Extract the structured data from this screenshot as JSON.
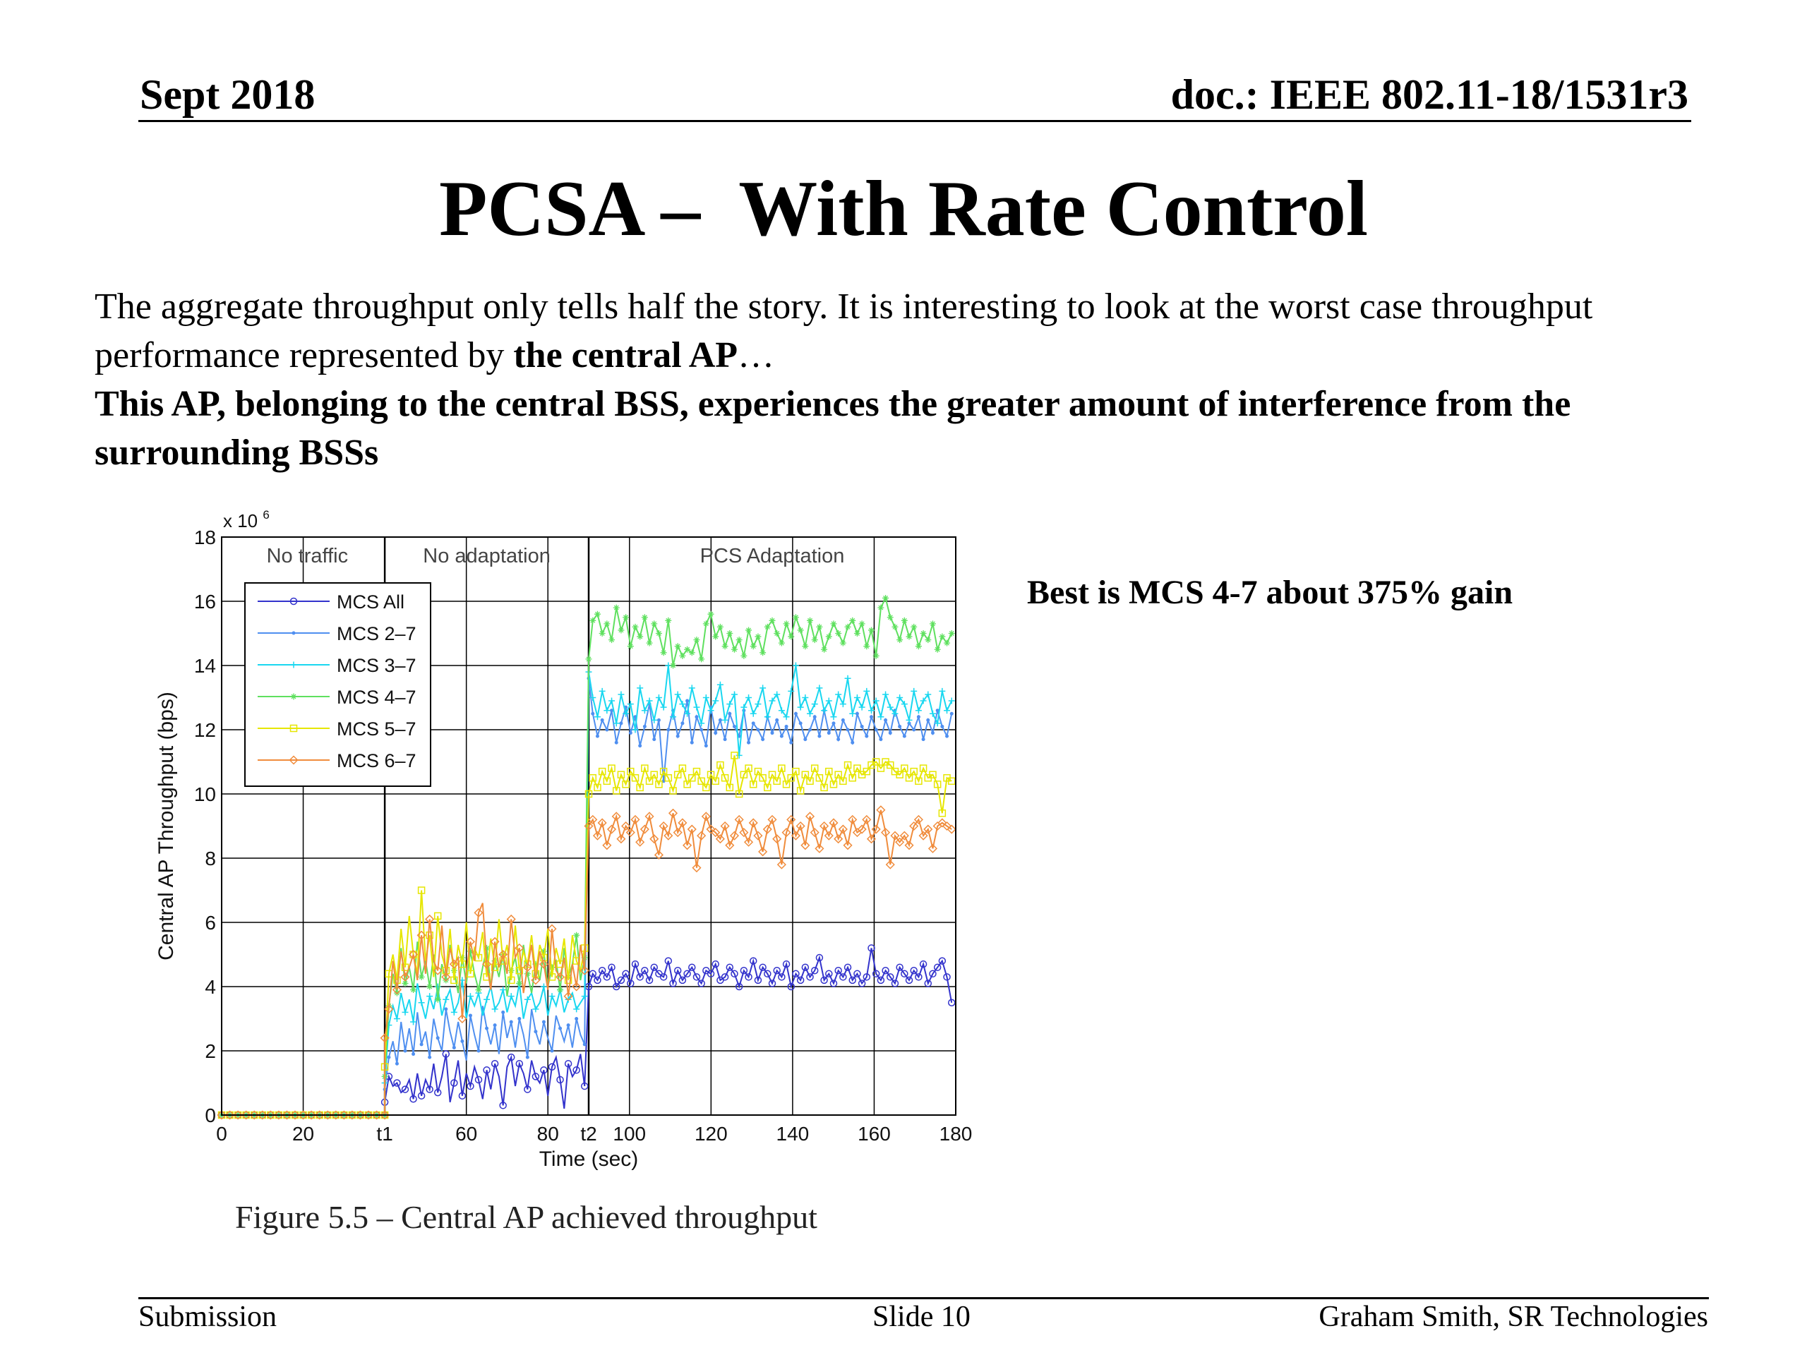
{
  "header": {
    "date": "Sept 2018",
    "doc": "doc.: IEEE 802.11-18/1531r3"
  },
  "title": "PCSA –  With Rate Control",
  "body": {
    "p1_start": "The aggregate throughput only tells half the story. It is interesting to look at the worst case throughput performance represented by ",
    "p1_bold": "the central AP",
    "p1_end": "…",
    "p2": "This AP, belonging to the central BSS, experiences the greater amount of interference from the surrounding BSSs"
  },
  "callout": "Best is MCS 4-7 about 375% gain",
  "caption": "Figure 5.5 – Central AP achieved throughput",
  "footer": {
    "left": "Submission",
    "center": "Slide 10",
    "right": "Graham Smith, SR Technologies"
  },
  "chart_data": {
    "type": "line",
    "xlabel": "Time (sec)",
    "ylabel": "Central AP Throughput (bps)",
    "y_multiplier": "x 10",
    "y_multiplier_exp": "6",
    "xlim": [
      0,
      180
    ],
    "ylim": [
      0,
      18
    ],
    "grid": true,
    "legend_position": "top-left",
    "x_tick_labels": [
      {
        "x": 0,
        "label": "0"
      },
      {
        "x": 20,
        "label": "20"
      },
      {
        "x": 40,
        "label": "t1"
      },
      {
        "x": 60,
        "label": "60"
      },
      {
        "x": 80,
        "label": "80"
      },
      {
        "x": 90,
        "label": "t2"
      },
      {
        "x": 100,
        "label": "100"
      },
      {
        "x": 120,
        "label": "120"
      },
      {
        "x": 140,
        "label": "140"
      },
      {
        "x": 160,
        "label": "160"
      },
      {
        "x": 180,
        "label": "180"
      }
    ],
    "y_ticks": [
      0,
      2,
      4,
      6,
      8,
      10,
      12,
      14,
      16,
      18
    ],
    "phase_boundaries": [
      40,
      90
    ],
    "phases": [
      {
        "label": "No traffic",
        "x": 21
      },
      {
        "label": "No adaptation",
        "x": 65
      },
      {
        "label": "PCS Adaptation",
        "x": 135
      }
    ],
    "series": [
      {
        "name": "MCS All",
        "color": "#3333cc",
        "marker": "circle",
        "phase1": 0.0,
        "phase2": [
          0.4,
          1.2,
          0.9,
          1.0,
          0.7,
          0.8,
          1.1,
          0.5,
          1.3,
          0.6,
          1.1,
          0.8,
          1.6,
          0.7,
          1.2,
          1.9,
          0.4,
          1.0,
          1.7,
          0.6,
          1.3,
          0.9,
          1.5,
          1.1,
          0.5,
          1.4,
          0.8,
          1.6,
          1.2,
          0.3,
          1.5,
          1.8,
          0.9,
          1.6,
          1.3,
          0.8,
          1.7,
          1.2,
          1.0,
          1.4,
          0.6,
          1.5,
          1.8,
          1.1,
          0.2,
          1.6,
          1.2,
          1.4,
          1.9,
          0.9,
          4.0
        ],
        "phase3": [
          4.4,
          4.2,
          4.5,
          4.3,
          4.6,
          4.0,
          4.2,
          4.4,
          4.1,
          4.7,
          4.3,
          4.5,
          4.2,
          4.6,
          4.4,
          4.3,
          4.8,
          4.1,
          4.5,
          4.2,
          4.4,
          4.6,
          4.3,
          4.1,
          4.5,
          4.4,
          4.7,
          4.2,
          4.3,
          4.6,
          4.4,
          4.0,
          4.5,
          4.3,
          4.8,
          4.2,
          4.6,
          4.4,
          4.1,
          4.5,
          4.3,
          4.7,
          4.0,
          4.4,
          4.2,
          4.6,
          4.3,
          4.5,
          4.9,
          4.2,
          4.4,
          4.1,
          4.5,
          4.3,
          4.6,
          4.2,
          4.4,
          4.1,
          4.3,
          5.2,
          4.4,
          4.2,
          4.5,
          4.3,
          4.1,
          4.6,
          4.4,
          4.2,
          4.5,
          4.3,
          4.7,
          4.1,
          4.4,
          4.6,
          4.8,
          4.3,
          3.5
        ]
      },
      {
        "name": "MCS 2–7",
        "color": "#4f8ff0",
        "marker": "dot",
        "phase1": 0.0,
        "phase2": [
          0.8,
          1.8,
          2.3,
          1.6,
          2.9,
          2.0,
          2.7,
          1.9,
          3.2,
          2.2,
          2.6,
          1.8,
          3.0,
          2.4,
          2.0,
          3.3,
          2.6,
          2.1,
          2.9,
          2.3,
          1.7,
          3.1,
          2.5,
          2.0,
          3.4,
          2.7,
          2.2,
          2.8,
          1.9,
          3.2,
          2.4,
          2.9,
          2.1,
          3.0,
          2.5,
          1.8,
          3.3,
          2.6,
          2.2,
          2.9,
          2.4,
          2.0,
          3.1,
          2.7,
          2.3,
          2.8,
          2.1,
          3.0,
          2.5,
          2.2,
          13.6
        ],
        "phase3": [
          12.5,
          11.8,
          12.3,
          12.0,
          12.6,
          11.6,
          12.2,
          12.7,
          11.9,
          12.4,
          11.5,
          12.1,
          12.8,
          11.7,
          12.3,
          10.4,
          12.0,
          12.6,
          11.8,
          12.2,
          12.9,
          11.6,
          12.4,
          12.0,
          11.5,
          12.7,
          11.9,
          12.3,
          11.7,
          12.5,
          12.1,
          11.8,
          12.6,
          11.6,
          12.2,
          12.0,
          11.7,
          12.4,
          11.9,
          12.3,
          11.8,
          12.1,
          11.6,
          12.5,
          12.2,
          11.7,
          12.0,
          12.4,
          11.8,
          12.6,
          11.9,
          12.2,
          11.7,
          12.3,
          12.0,
          11.6,
          12.5,
          12.1,
          11.8,
          12.4,
          12.0,
          11.7,
          12.3,
          11.9,
          12.6,
          12.1,
          11.8,
          12.2,
          12.0,
          12.4,
          11.7,
          12.3,
          11.9,
          12.6,
          12.1,
          11.8,
          12.5
        ]
      },
      {
        "name": "MCS 3–7",
        "color": "#19d7f0",
        "marker": "plus",
        "phase1": 0.0,
        "phase2": [
          1.0,
          2.8,
          3.4,
          3.0,
          3.8,
          3.2,
          3.6,
          2.9,
          4.1,
          3.5,
          3.0,
          3.7,
          3.3,
          4.0,
          3.1,
          3.6,
          3.9,
          3.2,
          3.5,
          4.2,
          3.0,
          3.7,
          3.4,
          3.8,
          3.1,
          3.6,
          4.0,
          3.3,
          3.5,
          3.9,
          3.2,
          3.7,
          3.4,
          4.1,
          3.0,
          3.6,
          3.8,
          3.3,
          3.5,
          4.0,
          3.1,
          3.7,
          3.4,
          3.9,
          3.2,
          3.6,
          3.8,
          3.3,
          3.5,
          3.7,
          13.8
        ],
        "phase3": [
          13.0,
          12.4,
          13.2,
          12.6,
          12.9,
          12.2,
          13.1,
          12.5,
          12.8,
          12.0,
          13.3,
          12.6,
          12.9,
          12.3,
          13.0,
          12.7,
          14.0,
          12.4,
          13.1,
          12.8,
          12.5,
          13.3,
          12.7,
          12.2,
          13.0,
          12.6,
          12.9,
          13.4,
          12.3,
          12.8,
          13.1,
          11.2,
          12.7,
          13.0,
          12.5,
          12.8,
          13.3,
          12.4,
          12.9,
          13.1,
          12.6,
          12.4,
          13.2,
          14.0,
          12.7,
          13.0,
          12.5,
          12.8,
          13.3,
          12.6,
          12.9,
          12.4,
          13.1,
          12.8,
          13.6,
          12.5,
          13.0,
          12.7,
          13.2,
          12.6,
          12.9,
          12.4,
          13.1,
          12.7,
          12.5,
          13.0,
          12.8,
          12.3,
          13.2,
          12.6,
          12.9,
          13.1,
          12.5,
          12.2,
          13.2,
          12.6,
          12.9
        ]
      },
      {
        "name": "MCS 4–7",
        "color": "#5fe05f",
        "marker": "star",
        "phase1": 0.0,
        "phase2": [
          1.2,
          3.4,
          4.4,
          3.8,
          5.2,
          4.1,
          4.6,
          3.9,
          5.4,
          4.3,
          4.8,
          4.0,
          5.0,
          3.6,
          4.7,
          4.2,
          5.3,
          4.5,
          3.8,
          4.9,
          4.1,
          5.1,
          4.4,
          3.9,
          4.6,
          5.2,
          4.0,
          4.8,
          4.3,
          5.0,
          3.7,
          4.5,
          4.9,
          4.1,
          5.3,
          4.4,
          3.8,
          4.7,
          4.2,
          5.1,
          4.0,
          4.6,
          4.8,
          3.9,
          5.2,
          4.3,
          4.7,
          5.6,
          4.2,
          4.9,
          14.2
        ],
        "phase3": [
          15.4,
          15.6,
          15.0,
          15.3,
          14.8,
          15.8,
          15.1,
          15.5,
          14.6,
          15.2,
          14.9,
          15.5,
          14.7,
          15.3,
          15.0,
          14.4,
          15.4,
          14.0,
          14.6,
          14.3,
          14.5,
          14.4,
          14.8,
          14.2,
          15.3,
          15.6,
          14.9,
          15.2,
          14.6,
          15.0,
          14.5,
          14.8,
          14.3,
          15.1,
          14.6,
          14.9,
          14.4,
          15.2,
          15.4,
          15.0,
          14.7,
          15.3,
          14.9,
          15.5,
          15.1,
          14.6,
          15.4,
          14.8,
          15.2,
          14.5,
          14.9,
          15.3,
          15.0,
          14.7,
          15.2,
          15.4,
          15.0,
          15.3,
          14.6,
          15.1,
          14.3,
          15.8,
          16.1,
          15.5,
          15.2,
          14.8,
          15.4,
          14.9,
          15.2,
          14.6,
          15.0,
          14.8,
          15.3,
          14.5,
          14.9,
          14.7,
          15.0
        ]
      },
      {
        "name": "MCS 5–7",
        "color": "#e6e600",
        "marker": "square",
        "phase1": 0.0,
        "phase2": [
          1.5,
          4.4,
          5.0,
          4.2,
          5.8,
          4.6,
          6.2,
          5.0,
          4.4,
          7.0,
          4.8,
          5.6,
          4.3,
          6.2,
          5.0,
          4.5,
          5.8,
          4.2,
          5.3,
          4.7,
          6.0,
          4.4,
          5.2,
          4.9,
          5.7,
          4.3,
          5.5,
          4.6,
          6.1,
          4.8,
          5.3,
          4.2,
          5.9,
          4.5,
          5.1,
          4.7,
          5.6,
          4.4,
          5.3,
          4.9,
          5.8,
          4.3,
          5.2,
          4.7,
          5.5,
          4.2,
          5.6,
          4.8,
          4.5,
          5.2,
          10.0
        ],
        "phase3": [
          10.5,
          10.2,
          10.7,
          10.4,
          10.8,
          10.1,
          10.6,
          10.3,
          10.7,
          10.5,
          10.2,
          10.8,
          10.4,
          10.6,
          10.3,
          10.7,
          10.5,
          10.1,
          10.6,
          10.8,
          10.3,
          10.5,
          10.7,
          10.4,
          10.2,
          10.6,
          10.4,
          10.9,
          10.5,
          10.2,
          11.2,
          10.0,
          10.6,
          10.8,
          10.3,
          10.7,
          10.5,
          10.2,
          10.6,
          10.4,
          10.8,
          10.3,
          10.5,
          10.7,
          10.1,
          10.6,
          10.4,
          10.8,
          10.5,
          10.2,
          10.7,
          10.3,
          10.6,
          10.4,
          10.9,
          10.5,
          10.8,
          10.6,
          10.7,
          10.9,
          11.0,
          10.8,
          11.0,
          10.9,
          10.7,
          10.6,
          10.8,
          10.5,
          10.7,
          10.4,
          10.8,
          10.5,
          10.6,
          10.3,
          9.4,
          10.5,
          10.4
        ]
      },
      {
        "name": "MCS 6–7",
        "color": "#f08c3c",
        "marker": "diamond",
        "phase1": 0.0,
        "phase2": [
          2.4,
          3.3,
          4.8,
          3.9,
          5.1,
          4.3,
          4.6,
          5.0,
          4.2,
          5.6,
          4.4,
          6.1,
          4.8,
          4.5,
          5.9,
          4.3,
          5.2,
          4.7,
          4.9,
          3.0,
          4.5,
          5.4,
          4.8,
          6.3,
          6.6,
          4.7,
          3.9,
          5.4,
          4.6,
          5.0,
          4.4,
          6.1,
          4.9,
          5.2,
          3.8,
          4.6,
          5.3,
          4.2,
          5.1,
          4.7,
          3.9,
          5.8,
          4.5,
          4.3,
          4.9,
          3.7,
          4.7,
          4.0,
          5.3,
          4.5,
          9.0
        ],
        "phase3": [
          9.2,
          8.7,
          9.1,
          8.4,
          8.9,
          9.3,
          8.6,
          9.0,
          8.8,
          9.2,
          8.5,
          8.9,
          9.3,
          8.6,
          8.1,
          9.0,
          8.7,
          9.4,
          8.8,
          9.1,
          8.4,
          8.9,
          7.7,
          8.7,
          9.3,
          8.9,
          8.8,
          8.6,
          9.0,
          8.4,
          8.7,
          9.2,
          8.8,
          8.5,
          9.1,
          8.7,
          8.2,
          8.9,
          9.2,
          8.6,
          7.8,
          8.8,
          9.2,
          8.7,
          9.0,
          8.4,
          9.3,
          8.8,
          8.3,
          9.0,
          8.7,
          9.1,
          8.6,
          8.9,
          8.4,
          9.2,
          8.8,
          8.9,
          9.2,
          8.6,
          8.9,
          9.5,
          8.8,
          7.8,
          8.7,
          8.5,
          8.7,
          8.4,
          9.0,
          9.2,
          8.7,
          8.9,
          8.3,
          9.0,
          9.1,
          9.0,
          8.9
        ]
      }
    ]
  }
}
